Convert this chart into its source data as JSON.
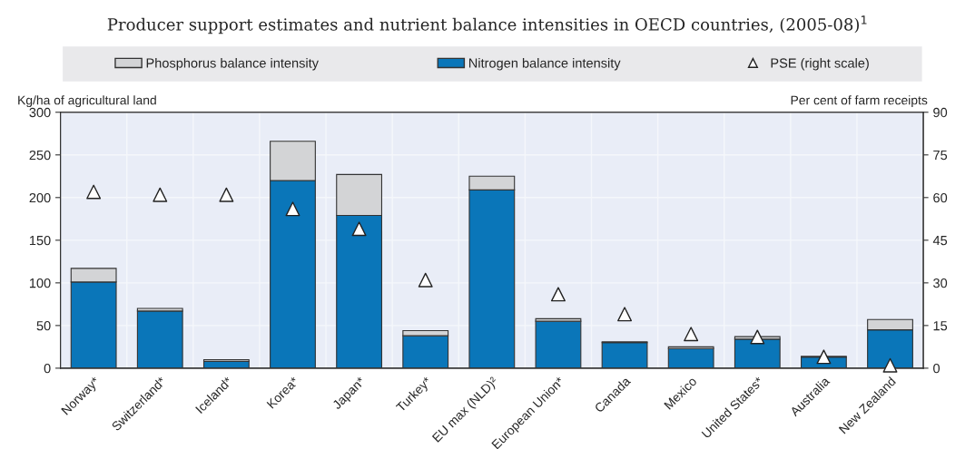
{
  "chart_data": {
    "type": "bar",
    "subtitle": "Producer support estimates and nutrient balance intensities in OECD countries, (2005-08)$^{1}$",
    "ylabel": "Kg/ha of agricultural land",
    "y2label": "Per cent of farm receipts",
    "categories": [
      "Norway*",
      "Switzerland*",
      "Iceland*",
      "Korea*",
      "Japan*",
      "Turkey*",
      "EU max (NLD)²",
      "European Union*",
      "Canada",
      "Mexico",
      "United States*",
      "Australia",
      "New Zealand"
    ],
    "stacked": true,
    "series": [
      {
        "name": "Nitrogen balance intensity",
        "color": "#0a76b9",
        "values": [
          101,
          67,
          8,
          220,
          179,
          38,
          209,
          55,
          30,
          23,
          34,
          13,
          45
        ]
      },
      {
        "name": "Phosphorus balance intensity",
        "color": "#d3d4d6",
        "values": [
          16,
          3,
          2,
          46,
          48,
          6,
          16,
          3,
          1,
          2,
          3,
          1,
          12
        ]
      },
      {
        "name": "PSE (right scale)",
        "type": "scatter",
        "axis": "y2",
        "marker": "triangle",
        "color": "#ffffff",
        "values": [
          62,
          61,
          61,
          56,
          49,
          31,
          null,
          26,
          19,
          12,
          11,
          4,
          1
        ]
      }
    ],
    "ylim": [
      0,
      300
    ],
    "yticks": [
      0,
      50,
      100,
      150,
      200,
      250,
      300
    ],
    "y2lim": [
      0,
      90
    ],
    "y2ticks": [
      0,
      15,
      30,
      45,
      60,
      75,
      90
    ],
    "grid": true,
    "legend": "top"
  }
}
